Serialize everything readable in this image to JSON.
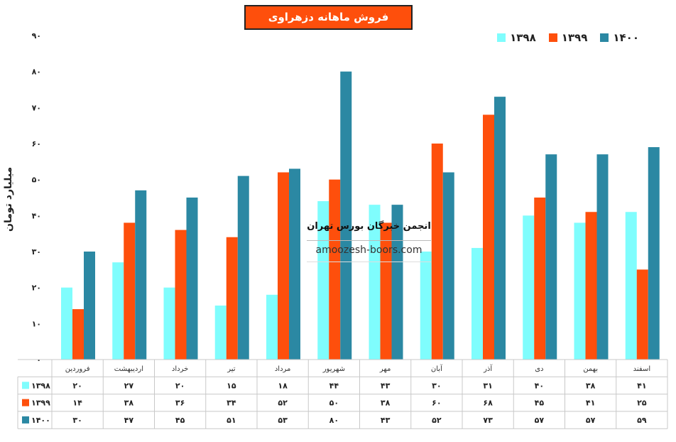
{
  "chart_data": {
    "type": "bar",
    "title": "فروش ماهانه دزهراوی",
    "ylabel": "میلیارد تومان",
    "ylim": [
      0,
      90
    ],
    "yticks": [
      "۰",
      "۱۰",
      "۲۰",
      "۳۰",
      "۴۰",
      "۵۰",
      "۶۰",
      "۷۰",
      "۸۰",
      "۹۰"
    ],
    "categories": [
      "فروردین",
      "اردیبهشت",
      "خرداد",
      "تیر",
      "مرداد",
      "شهریور",
      "مهر",
      "آبان",
      "آذر",
      "دی",
      "بهمن",
      "اسفند"
    ],
    "series": [
      {
        "name": "۱۳۹۸",
        "color": "#7ffdfd",
        "values": [
          20,
          27,
          20,
          15,
          18,
          44,
          43,
          30,
          31,
          40,
          38,
          41
        ],
        "labels": [
          "۲۰",
          "۲۷",
          "۲۰",
          "۱۵",
          "۱۸",
          "۴۴",
          "۴۳",
          "۳۰",
          "۳۱",
          "۴۰",
          "۳۸",
          "۴۱"
        ]
      },
      {
        "name": "۱۳۹۹",
        "color": "#fe4f0c",
        "values": [
          14,
          38,
          36,
          34,
          52,
          50,
          38,
          60,
          68,
          45,
          41,
          25
        ],
        "labels": [
          "۱۴",
          "۳۸",
          "۳۶",
          "۳۴",
          "۵۲",
          "۵۰",
          "۳۸",
          "۶۰",
          "۶۸",
          "۴۵",
          "۴۱",
          "۲۵"
        ]
      },
      {
        "name": "۱۴۰۰",
        "color": "#2b88a3",
        "values": [
          30,
          47,
          45,
          51,
          53,
          80,
          43,
          52,
          73,
          57,
          57,
          59
        ],
        "labels": [
          "۳۰",
          "۴۷",
          "۴۵",
          "۵۱",
          "۵۳",
          "۸۰",
          "۴۳",
          "۵۲",
          "۷۳",
          "۵۷",
          "۵۷",
          "۵۹"
        ]
      }
    ],
    "legend_position": "top-right",
    "data_table": true,
    "grid": false
  },
  "watermark": {
    "title": "انجمن خبرگان بورس تهران",
    "url": "amoozesh-boors.com"
  }
}
